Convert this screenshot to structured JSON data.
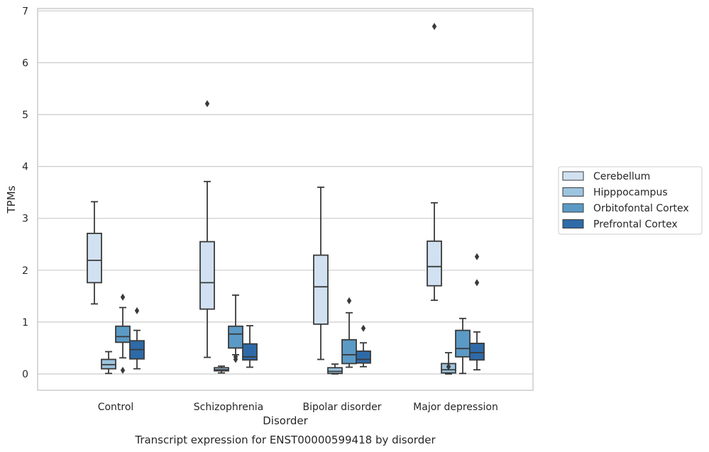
{
  "chart_data": {
    "type": "box",
    "title": "",
    "caption": "Transcript expression for ENST00000599418 by disorder",
    "xlabel": "Disorder",
    "ylabel": "TPMs",
    "ylim": [
      -0.31,
      7.05
    ],
    "yticks": [
      0,
      1,
      2,
      3,
      4,
      5,
      6,
      7
    ],
    "grid": "horizontal",
    "legend_position": "right",
    "categories": [
      "Control",
      "Schizophrenia",
      "Bipolar disorder",
      "Major depression"
    ],
    "series": [
      {
        "name": "Cerebellum",
        "color": "#d1e1f1",
        "boxes": [
          {
            "whisker_low": 1.35,
            "q1": 1.76,
            "median": 2.19,
            "q3": 2.71,
            "whisker_high": 3.32,
            "outliers": []
          },
          {
            "whisker_low": 0.32,
            "q1": 1.25,
            "median": 1.76,
            "q3": 2.55,
            "whisker_high": 3.71,
            "outliers": [
              5.21
            ]
          },
          {
            "whisker_low": 0.28,
            "q1": 0.96,
            "median": 1.68,
            "q3": 2.29,
            "whisker_high": 3.6,
            "outliers": []
          },
          {
            "whisker_low": 1.42,
            "q1": 1.7,
            "median": 2.07,
            "q3": 2.56,
            "whisker_high": 3.3,
            "outliers": [
              6.7
            ]
          }
        ]
      },
      {
        "name": "Hipppocampus",
        "color": "#9cc4de",
        "boxes": [
          {
            "whisker_low": 0.01,
            "q1": 0.1,
            "median": 0.18,
            "q3": 0.28,
            "whisker_high": 0.43,
            "outliers": []
          },
          {
            "whisker_low": 0.02,
            "q1": 0.06,
            "median": 0.08,
            "q3": 0.12,
            "whisker_high": 0.15,
            "outliers": []
          },
          {
            "whisker_low": 0.0,
            "q1": 0.01,
            "median": 0.05,
            "q3": 0.12,
            "whisker_high": 0.19,
            "outliers": []
          },
          {
            "whisker_low": 0.0,
            "q1": 0.02,
            "median": 0.08,
            "q3": 0.2,
            "whisker_high": 0.41,
            "outliers": [
              0.14
            ]
          }
        ]
      },
      {
        "name": "Orbitofontal Cortex",
        "color": "#5b9ac6",
        "boxes": [
          {
            "whisker_low": 0.31,
            "q1": 0.61,
            "median": 0.72,
            "q3": 0.92,
            "whisker_high": 1.28,
            "outliers": [
              1.48,
              0.07
            ]
          },
          {
            "whisker_low": 0.37,
            "q1": 0.5,
            "median": 0.77,
            "q3": 0.92,
            "whisker_high": 1.52,
            "outliers": [
              0.28,
              0.33
            ]
          },
          {
            "whisker_low": 0.13,
            "q1": 0.2,
            "median": 0.37,
            "q3": 0.66,
            "whisker_high": 1.18,
            "outliers": [
              1.41
            ]
          },
          {
            "whisker_low": 0.01,
            "q1": 0.33,
            "median": 0.49,
            "q3": 0.84,
            "whisker_high": 1.07,
            "outliers": []
          }
        ]
      },
      {
        "name": "Prefrontal Cortex",
        "color": "#2e6aa8",
        "boxes": [
          {
            "whisker_low": 0.1,
            "q1": 0.29,
            "median": 0.47,
            "q3": 0.64,
            "whisker_high": 0.84,
            "outliers": [
              1.22
            ]
          },
          {
            "whisker_low": 0.13,
            "q1": 0.27,
            "median": 0.33,
            "q3": 0.58,
            "whisker_high": 0.93,
            "outliers": []
          },
          {
            "whisker_low": 0.14,
            "q1": 0.21,
            "median": 0.28,
            "q3": 0.44,
            "whisker_high": 0.6,
            "outliers": [
              0.88
            ]
          },
          {
            "whisker_low": 0.08,
            "q1": 0.27,
            "median": 0.41,
            "q3": 0.59,
            "whisker_high": 0.81,
            "outliers": [
              2.26,
              1.76
            ]
          }
        ]
      }
    ]
  }
}
